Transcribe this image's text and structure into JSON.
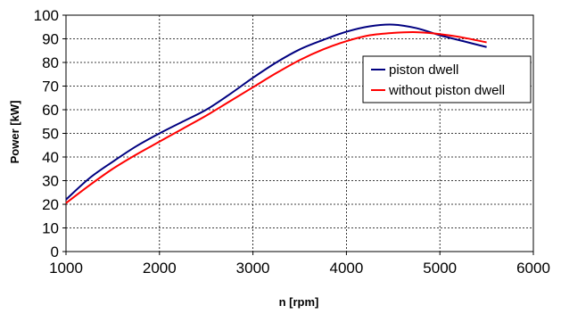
{
  "chart_data": {
    "type": "line",
    "xlabel": "n [rpm]",
    "ylabel": "Power [kW]",
    "xlim": [
      1000,
      6000
    ],
    "ylim": [
      0,
      100
    ],
    "xticks": [
      1000,
      2000,
      3000,
      4000,
      5000,
      6000
    ],
    "yticks": [
      0,
      10,
      20,
      30,
      40,
      50,
      60,
      70,
      80,
      90,
      100
    ],
    "grid": true,
    "legend_position": "right",
    "series": [
      {
        "name": "piston dwell",
        "color": "#000080",
        "x": [
          1000,
          1250,
          1500,
          1750,
          2000,
          2250,
          2500,
          2750,
          3000,
          3250,
          3500,
          3750,
          4000,
          4250,
          4500,
          4750,
          5000,
          5250,
          5500
        ],
        "y": [
          22,
          31,
          38,
          44.5,
          50,
          55,
          60,
          66.5,
          73.5,
          80,
          85.5,
          89.5,
          93,
          95.3,
          96,
          94.5,
          91.5,
          89,
          86.5
        ]
      },
      {
        "name": "without piston dwell",
        "color": "#FF0000",
        "x": [
          1000,
          1250,
          1500,
          1750,
          2000,
          2250,
          2500,
          2750,
          3000,
          3250,
          3500,
          3750,
          4000,
          4250,
          4500,
          4750,
          5000,
          5250,
          5500
        ],
        "y": [
          20.5,
          28,
          35,
          41,
          46.5,
          52,
          57.5,
          63.5,
          69.5,
          75.5,
          81,
          85.5,
          89,
          91.5,
          92.5,
          92.8,
          92,
          90.5,
          88.5
        ]
      }
    ]
  }
}
